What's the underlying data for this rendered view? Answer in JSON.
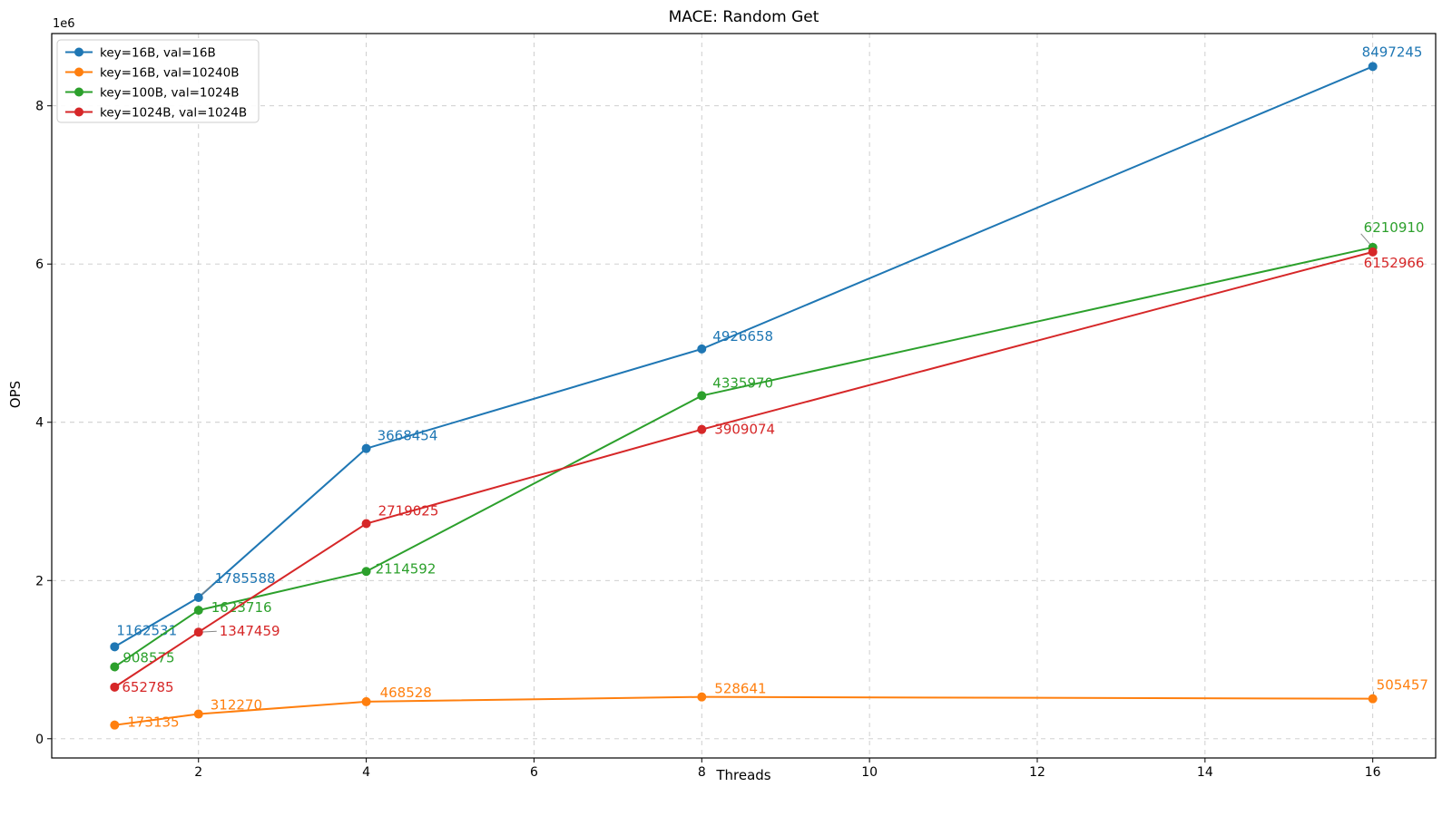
{
  "figure": {
    "title": "MACE: Random Get",
    "xlabel": "Threads",
    "ylabel": "OPS",
    "offset_text": "1e6"
  },
  "chart_data": {
    "type": "line",
    "title": "MACE: Random Get",
    "xlabel": "Threads",
    "ylabel": "OPS",
    "y_offset_text": "1e6",
    "x": [
      1,
      2,
      4,
      8,
      16
    ],
    "xticks": [
      2,
      4,
      6,
      8,
      10,
      12,
      14,
      16
    ],
    "yticks": [
      0,
      2,
      4,
      6,
      8
    ],
    "ytick_unit": 1000000,
    "xlim": [
      0.25,
      16.75
    ],
    "ylim": [
      -243070,
      8913450
    ],
    "grid": true,
    "grid_color": "#c9c9c9",
    "legend_position": "upper-left",
    "series": [
      {
        "name": "key=16B, val=16B",
        "color": "#1f77b4",
        "values": [
          1162531,
          1785588,
          3668454,
          4926658,
          8497245
        ],
        "label_offsets": [
          [
            2,
            -18
          ],
          [
            18,
            -21
          ],
          [
            12,
            -14
          ],
          [
            12,
            -14
          ],
          [
            -12,
            -16
          ]
        ],
        "leaders": [
          false,
          true,
          false,
          false,
          false
        ]
      },
      {
        "name": "key=16B, val=10240B",
        "color": "#ff7f0e",
        "values": [
          173135,
          312270,
          468528,
          528641,
          505457
        ],
        "label_offsets": [
          [
            14,
            -3
          ],
          [
            13,
            -10
          ],
          [
            15,
            -10
          ],
          [
            14,
            -9
          ],
          [
            4,
            -15
          ]
        ],
        "leaders": [
          false,
          false,
          false,
          false,
          true
        ]
      },
      {
        "name": "key=100B, val=1024B",
        "color": "#2ca02c",
        "values": [
          908575,
          1623716,
          2114592,
          4335970,
          6210910
        ],
        "label_offsets": [
          [
            9,
            -10
          ],
          [
            14,
            -3
          ],
          [
            10,
            -3
          ],
          [
            12,
            -14
          ],
          [
            -10,
            -22
          ]
        ],
        "leaders": [
          false,
          false,
          false,
          false,
          true
        ]
      },
      {
        "name": "key=1024B, val=1024B",
        "color": "#d62728",
        "values": [
          652785,
          1347459,
          2719025,
          3909074,
          6152966
        ],
        "label_offsets": [
          [
            8,
            0
          ],
          [
            23,
            -1
          ],
          [
            13,
            -14
          ],
          [
            14,
            0
          ],
          [
            -10,
            12
          ]
        ],
        "leaders": [
          false,
          true,
          false,
          false,
          false
        ]
      }
    ]
  }
}
